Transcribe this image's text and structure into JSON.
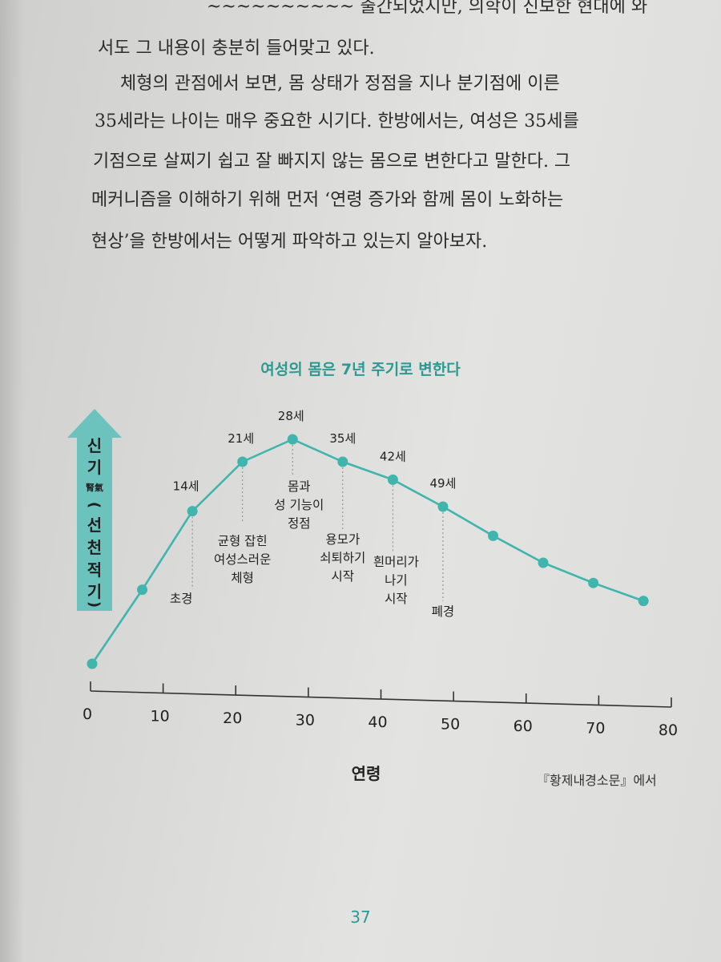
{
  "text": {
    "line0": "~~~~~~~~~~ 출간되었지만, 의학이 진보한 현대에 와",
    "line1": "서도 그 내용이 충분히 들어맞고 있다.",
    "line2": "체형의 관점에서 보면, 몸 상태가 정점을 지나 분기점에 이른",
    "line3": "35세라는 나이는 매우 중요한 시기다. 한방에서는, 여성은 35세를",
    "line4": "기점으로 살찌기 쉽고 잘 빠지지 않는 몸으로 변한다고 말한다. 그",
    "line5": "메커니즘을 이해하기 위해 먼저 ‘연령 증가와 함께 몸이 노화하는",
    "line6": "현상’을 한방에서는 어떻게 파악하고 있는지 알아보자."
  },
  "chart_data": {
    "type": "line",
    "title": "여성의 몸은 7년 주기로 변한다",
    "xlabel": "연령",
    "ylabel": [
      "신",
      "기",
      "腎氣",
      "(",
      "선",
      "천",
      "적",
      "기",
      ")"
    ],
    "xlim": [
      0,
      80
    ],
    "xticks": [
      "0",
      "10",
      "20",
      "30",
      "40",
      "50",
      "60",
      "70",
      "80"
    ],
    "ylim": [
      0,
      100
    ],
    "x": [
      0,
      7,
      14,
      21,
      28,
      35,
      42,
      49,
      56,
      63,
      70,
      77
    ],
    "y": [
      0,
      33,
      68,
      90,
      100,
      90,
      82,
      70,
      57,
      45,
      36,
      28
    ],
    "age_labels": [
      {
        "x": 14,
        "text": "14세"
      },
      {
        "x": 21,
        "text": "21세"
      },
      {
        "x": 28,
        "text": "28세"
      },
      {
        "x": 35,
        "text": "35세"
      },
      {
        "x": 42,
        "text": "42세"
      },
      {
        "x": 49,
        "text": "49세"
      }
    ],
    "annotations": [
      {
        "x": 14,
        "lines": [
          "초경"
        ]
      },
      {
        "x": 21,
        "lines": [
          "균형 잡힌",
          "여성스러운",
          "체형"
        ]
      },
      {
        "x": 28,
        "lines": [
          "몸과",
          "성 기능이",
          "정점"
        ]
      },
      {
        "x": 35,
        "lines": [
          "용모가",
          "쇠퇴하기",
          "시작"
        ]
      },
      {
        "x": 42,
        "lines": [
          "흰머리가",
          "나기",
          "시작"
        ]
      },
      {
        "x": 49,
        "lines": [
          "폐경"
        ]
      }
    ],
    "colors": {
      "line": "#3fb5ad",
      "arrow": "#6cc3bd",
      "title": "#2b9a92"
    }
  },
  "source": "『황제내경소문』에서",
  "page_number": "37"
}
